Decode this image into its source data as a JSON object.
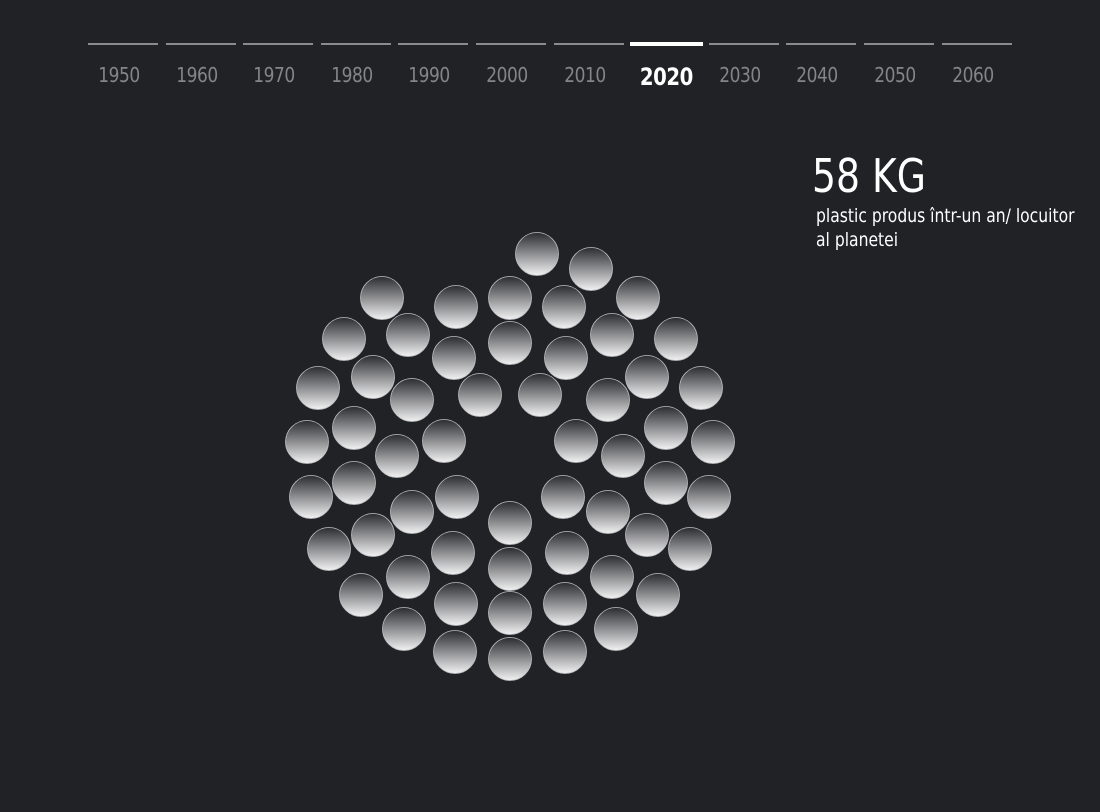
{
  "timeline": {
    "years": [
      {
        "label": "1950",
        "active": false
      },
      {
        "label": "1960",
        "active": false
      },
      {
        "label": "1970",
        "active": false
      },
      {
        "label": "1980",
        "active": false
      },
      {
        "label": "1990",
        "active": false
      },
      {
        "label": "2000",
        "active": false
      },
      {
        "label": "2010",
        "active": false
      },
      {
        "label": "2020",
        "active": true
      },
      {
        "label": "2030",
        "active": false
      },
      {
        "label": "2040",
        "active": false
      },
      {
        "label": "2050",
        "active": false
      },
      {
        "label": "2060",
        "active": false
      }
    ]
  },
  "stat": {
    "value": "58 KG",
    "description": "plastic produs într-un an/ locuitor al planetei"
  },
  "bubbles": {
    "count": 58,
    "fill_top": "#2b2c30",
    "fill_bottom": "#f2f2f3",
    "stroke": "#bfc0c3"
  }
}
